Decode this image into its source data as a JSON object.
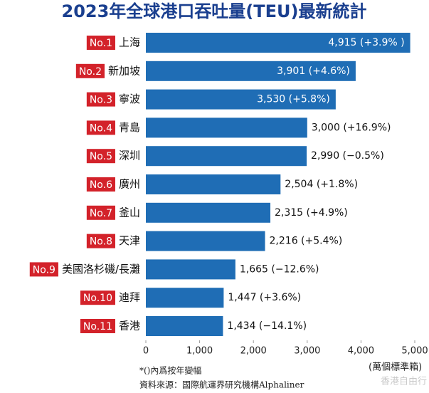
{
  "chart_data": {
    "type": "bar",
    "orientation": "horizontal",
    "title": "2023年全球港口吞吐量(TEU)最新統計",
    "ranks": [
      "No.1",
      "No.2",
      "No.3",
      "No.4",
      "No.5",
      "No.6",
      "No.7",
      "No.8",
      "No.9",
      "No.10",
      "No.11"
    ],
    "categories": [
      "上海",
      "新加坡",
      "寧波",
      "青島",
      "深圳",
      "廣州",
      "釜山",
      "天津",
      "美國洛杉磯/長灘",
      "迪拜",
      "香港"
    ],
    "values": [
      4915,
      3901,
      3530,
      3000,
      2990,
      2504,
      2315,
      2216,
      1665,
      1447,
      1434
    ],
    "value_labels": [
      "4,915 (+3.9% )",
      "3,901 (+4.6%)",
      "3,530 (+5.8%)",
      "3,000 (+16.9%)",
      "2,990 (−0.5%)",
      "2,504 (+1.8%)",
      "2,315 (+4.9%)",
      "2,216 (+5.4%)",
      "1,665 (−12.6%)",
      "1,447 (+3.6%)",
      "1,434 (−14.1%)"
    ],
    "color": "#1f6db5",
    "rank_color": "#d3222a",
    "xlim": [
      0,
      5000
    ],
    "xticks": [
      0,
      {
        "value": 1000,
        "label": "1,000"
      },
      {
        "value": 2000,
        "label": "2,000"
      },
      {
        "value": 3000,
        "label": "3,000"
      },
      {
        "value": 4000,
        "label": "4,000"
      },
      {
        "value": 5000,
        "label": "5,000"
      }
    ],
    "unit": "(萬個標準箱)",
    "notes": [
      "*()內爲按年變幅",
      "資料來源：國際航運界研究機構Alphaliner"
    ],
    "watermark": "香港自由行"
  }
}
